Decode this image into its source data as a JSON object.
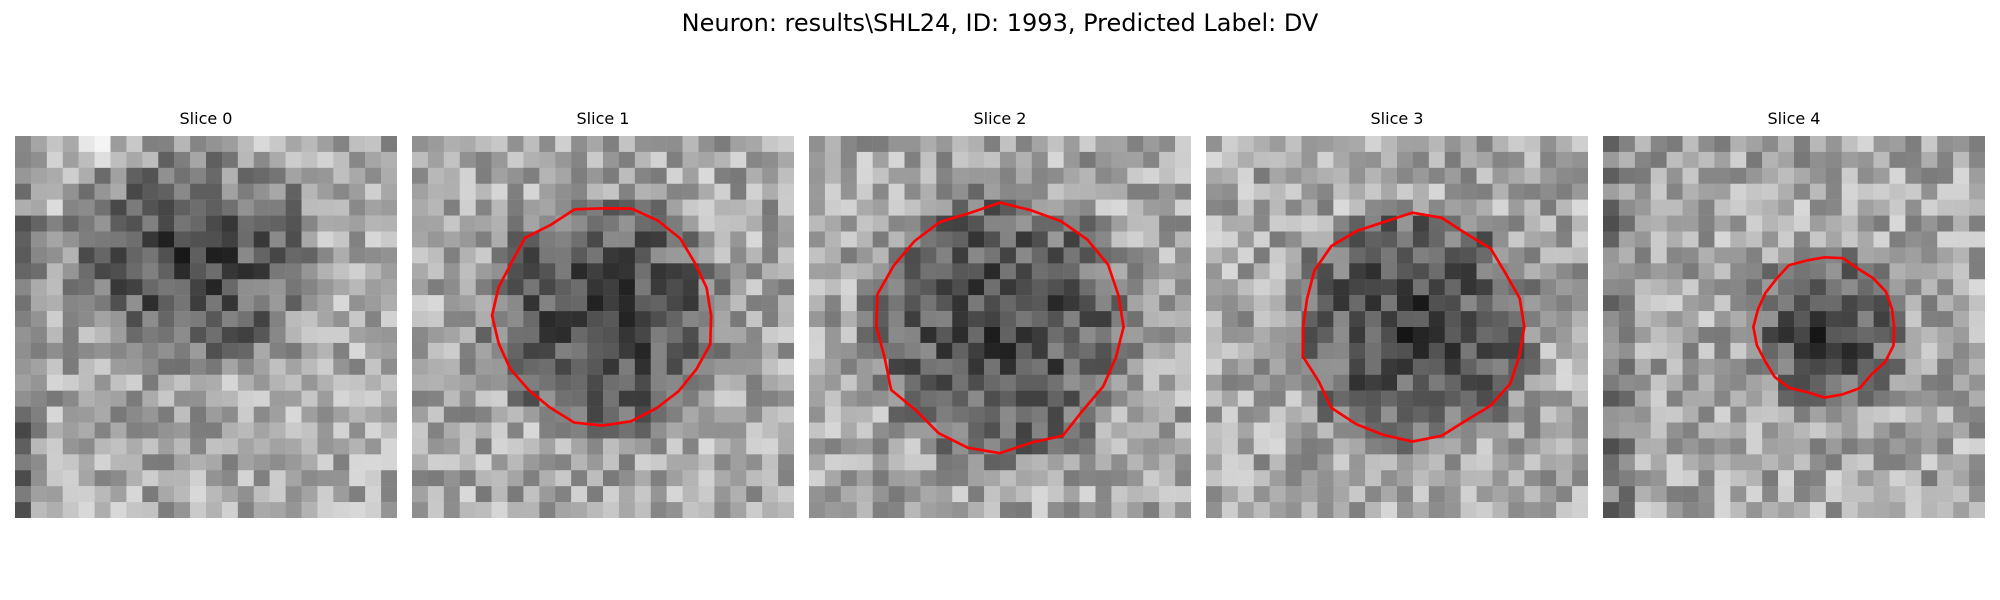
{
  "figure": {
    "title": "Neuron: results\\SHL24, ID: 1993, Predicted Label: DV",
    "grid_size": 24,
    "contour_color": "#ff0000",
    "panels": [
      {
        "title": "Slice 0",
        "seed": 11,
        "has_contour": false,
        "contour_radius": 0,
        "dark_center": [
          0.45,
          0.3
        ],
        "dark_left_edge": true
      },
      {
        "title": "Slice 1",
        "seed": 23,
        "has_contour": true,
        "contour_radius": 0.28,
        "dark_center": [
          0.5,
          0.47
        ],
        "dark_left_edge": false
      },
      {
        "title": "Slice 2",
        "seed": 37,
        "has_contour": true,
        "contour_radius": 0.32,
        "dark_center": [
          0.5,
          0.5
        ],
        "dark_left_edge": false
      },
      {
        "title": "Slice 3",
        "seed": 51,
        "has_contour": true,
        "contour_radius": 0.29,
        "dark_center": [
          0.54,
          0.5
        ],
        "dark_left_edge": false
      },
      {
        "title": "Slice 4",
        "seed": 67,
        "has_contour": true,
        "contour_radius": 0.18,
        "dark_center": [
          0.58,
          0.5
        ],
        "dark_left_edge": true
      }
    ]
  }
}
